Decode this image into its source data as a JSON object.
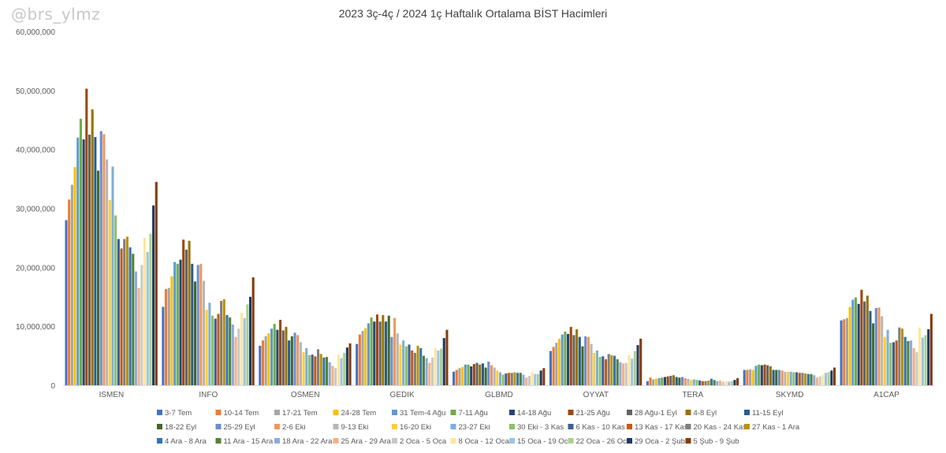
{
  "watermark": "@brs_ylmz",
  "chart_data": {
    "type": "bar",
    "title": "2023 3ç-4ç / 2024 1ç Haftalık Ortalama BİST Hacimleri",
    "xlabel": "",
    "ylabel": "",
    "ylim": [
      0,
      60000000
    ],
    "yticks": [
      "0",
      "10,000,000",
      "20,000,000",
      "30,000,000",
      "40,000,000",
      "50,000,000",
      "60,000,000"
    ],
    "grid": false,
    "legend_position": "bottom",
    "categories": [
      "ISMEN",
      "INFO",
      "OSMEN",
      "GEDIK",
      "GLBMD",
      "OYYAT",
      "TERA",
      "SKYMD",
      "A1CAP"
    ],
    "series": [
      {
        "name": "3-7 Tem",
        "color": "#4472C4",
        "values": [
          28000000,
          13300000,
          6700000,
          7000000,
          2300000,
          5800000,
          700000,
          2600000,
          11000000
        ]
      },
      {
        "name": "10-14 Tem",
        "color": "#ED7D31",
        "values": [
          31500000,
          16300000,
          7600000,
          8600000,
          2600000,
          6500000,
          1300000,
          2600000,
          11200000
        ]
      },
      {
        "name": "17-21 Tem",
        "color": "#A5A5A5",
        "values": [
          34000000,
          16500000,
          8300000,
          9200000,
          2900000,
          7200000,
          1000000,
          2700000,
          11400000
        ]
      },
      {
        "name": "24-28 Tem",
        "color": "#FFC000",
        "values": [
          37000000,
          18500000,
          8800000,
          9700000,
          3100000,
          7900000,
          1100000,
          2600000,
          13300000
        ]
      },
      {
        "name": "31 Tem-4 Ağu",
        "color": "#5B9BD5",
        "values": [
          42000000,
          20900000,
          9600000,
          10500000,
          3500000,
          8600000,
          1200000,
          3300000,
          14500000
        ]
      },
      {
        "name": "7-11 Ağu",
        "color": "#70AD47",
        "values": [
          45200000,
          20600000,
          10400000,
          11500000,
          3500000,
          9100000,
          1300000,
          3500000,
          14900000
        ]
      },
      {
        "name": "14-18 Ağu",
        "color": "#264478",
        "values": [
          41700000,
          21300000,
          9400000,
          10800000,
          3200000,
          8700000,
          1400000,
          3400000,
          13800000
        ]
      },
      {
        "name": "21-25 Ağu",
        "color": "#9E480E",
        "values": [
          50300000,
          24700000,
          11100000,
          12000000,
          3600000,
          9900000,
          1500000,
          3500000,
          16200000
        ]
      },
      {
        "name": "28 Ağu-1 Eyl",
        "color": "#636363",
        "values": [
          42500000,
          23000000,
          9300000,
          10800000,
          3800000,
          8500000,
          1600000,
          3400000,
          14200000
        ]
      },
      {
        "name": "4-8 Eyl",
        "color": "#997300",
        "values": [
          46800000,
          24500000,
          9900000,
          11900000,
          3500000,
          9500000,
          1700000,
          3200000,
          15200000
        ]
      },
      {
        "name": "11-15 Eyl",
        "color": "#255E91",
        "values": [
          42100000,
          20600000,
          7600000,
          10800000,
          3700000,
          8200000,
          1400000,
          2600000,
          12600000
        ]
      },
      {
        "name": "18-22 Eyl",
        "color": "#43682B",
        "values": [
          36400000,
          17600000,
          8300000,
          11800000,
          3000000,
          6600000,
          1300000,
          2600000,
          10500000
        ]
      },
      {
        "name": "25-29 Eyl",
        "color": "#698ED0",
        "values": [
          43100000,
          20400000,
          8900000,
          8200000,
          4000000,
          8300000,
          1400000,
          2600000,
          13100000
        ]
      },
      {
        "name": "2-6 Eki",
        "color": "#F1975A",
        "values": [
          42600000,
          20600000,
          8500000,
          11400000,
          3400000,
          8200000,
          1200000,
          2500000,
          13200000
        ]
      },
      {
        "name": "9-13 Eki",
        "color": "#B7B7B7",
        "values": [
          38300000,
          17700000,
          7300000,
          8800000,
          3000000,
          7000000,
          1100000,
          2300000,
          11700000
        ]
      },
      {
        "name": "16-20 Eki",
        "color": "#FFCD33",
        "values": [
          31400000,
          12800000,
          5600000,
          6900000,
          2500000,
          5500000,
          900000,
          2300000,
          8200000
        ]
      },
      {
        "name": "23-27 Eki",
        "color": "#7CAFDD",
        "values": [
          37100000,
          14000000,
          6300000,
          7600000,
          2200000,
          5900000,
          1000000,
          2300000,
          9400000
        ]
      },
      {
        "name": "30 Eki - 3 Kas",
        "color": "#8CC168",
        "values": [
          28800000,
          11800000,
          5100000,
          6600000,
          1800000,
          4800000,
          900000,
          2200000,
          7200000
        ]
      },
      {
        "name": "6 Kas - 10 Kas",
        "color": "#3A5E9C",
        "values": [
          24800000,
          11300000,
          5200000,
          6900000,
          2000000,
          4900000,
          800000,
          2200000,
          7300000
        ]
      },
      {
        "name": "13 Kas - 17 Kas",
        "color": "#C55A11",
        "values": [
          23200000,
          12100000,
          4900000,
          5900000,
          2100000,
          4400000,
          700000,
          2100000,
          7600000
        ]
      },
      {
        "name": "20 Kas - 24 Kas",
        "color": "#7F7F7F",
        "values": [
          24800000,
          14300000,
          6100000,
          5500000,
          2100000,
          5300000,
          700000,
          2100000,
          9800000
        ]
      },
      {
        "name": "27 Kas - 1 Ara",
        "color": "#BF9000",
        "values": [
          25200000,
          14600000,
          5300000,
          6700000,
          2200000,
          5100000,
          800000,
          2000000,
          9600000
        ]
      },
      {
        "name": "4 Ara - 8 Ara",
        "color": "#2E75B6",
        "values": [
          23400000,
          11900000,
          4700000,
          6300000,
          2100000,
          5000000,
          1100000,
          1900000,
          8200000
        ]
      },
      {
        "name": "11 Ara - 15 Ara",
        "color": "#548235",
        "values": [
          22300000,
          11500000,
          4800000,
          5000000,
          2100000,
          4400000,
          900000,
          1900000,
          7500000
        ]
      },
      {
        "name": "18 Ara - 22 Ara",
        "color": "#8FAADC",
        "values": [
          19300000,
          10300000,
          3900000,
          4600000,
          1800000,
          3900000,
          700000,
          1700000,
          7600000
        ]
      },
      {
        "name": "25 Ara - 29 Ara",
        "color": "#F4B183",
        "values": [
          16500000,
          8200000,
          3300000,
          3800000,
          1300000,
          3700000,
          800000,
          1300000,
          6300000
        ]
      },
      {
        "name": "2 Oca - 5 Oca",
        "color": "#C9C9C9",
        "values": [
          20400000,
          9600000,
          2900000,
          4700000,
          1600000,
          3800000,
          600000,
          1500000,
          5600000
        ]
      },
      {
        "name": "8 Oca - 12 Oca",
        "color": "#FFE699",
        "values": [
          25000000,
          12300000,
          5200000,
          6300000,
          2200000,
          5100000,
          700000,
          1800000,
          9800000
        ]
      },
      {
        "name": "15 Oca - 19 Oca",
        "color": "#9DC3E6",
        "values": [
          22600000,
          11400000,
          4600000,
          5900000,
          1900000,
          4500000,
          600000,
          2100000,
          8100000
        ]
      },
      {
        "name": "22 Oca - 26 Oca",
        "color": "#A9D18E",
        "values": [
          25700000,
          13700000,
          5500000,
          6200000,
          1900000,
          5800000,
          700000,
          2200000,
          8500000
        ]
      },
      {
        "name": "29 Oca - 2 Şub",
        "color": "#203864",
        "values": [
          30500000,
          15000000,
          6400000,
          8000000,
          2500000,
          6800000,
          900000,
          2500000,
          9500000
        ]
      },
      {
        "name": "5 Şub - 9 Şub",
        "color": "#843C0C",
        "values": [
          34500000,
          18300000,
          7100000,
          9400000,
          2900000,
          7900000,
          1200000,
          3000000,
          12100000
        ]
      }
    ]
  }
}
